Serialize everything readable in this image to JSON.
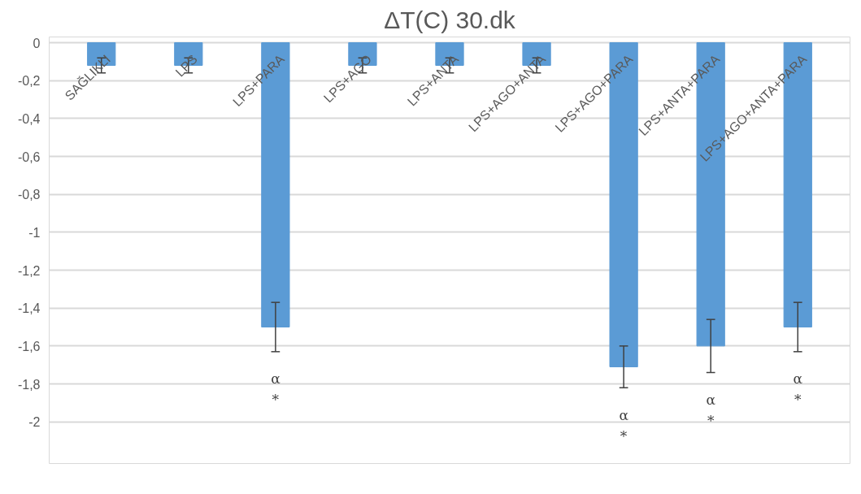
{
  "chart_data": {
    "type": "bar",
    "title": "ΔT(C) 30.dk",
    "categories": [
      "SAĞLIKLI",
      "LPS",
      "LPS+PARA",
      "LPS+AGO",
      "LPS+ANTA",
      "LPS+AGO+ANTA",
      "LPS+AGO+PARA",
      "LPS+ANTA+PARA",
      "LPS+AGO+ANTA+PARA"
    ],
    "values": [
      -0.12,
      -0.12,
      -1.5,
      -0.12,
      -0.12,
      -0.12,
      -1.71,
      -1.6,
      -1.5
    ],
    "errors": [
      0.04,
      0.04,
      0.13,
      0.04,
      0.04,
      0.04,
      0.11,
      0.14,
      0.13
    ],
    "color": "#5b9bd5",
    "ylim": [
      -2.22,
      0.03
    ],
    "yticks": [
      {
        "value": 0,
        "label": "0"
      },
      {
        "value": -0.2,
        "label": "-0,2"
      },
      {
        "value": -0.4,
        "label": "-0,4"
      },
      {
        "value": -0.6,
        "label": "-0,6"
      },
      {
        "value": -0.8,
        "label": "-0,8"
      },
      {
        "value": -1,
        "label": "-1"
      },
      {
        "value": -1.2,
        "label": "-1,2"
      },
      {
        "value": -1.4,
        "label": "-1,4"
      },
      {
        "value": -1.6,
        "label": "-1,6"
      },
      {
        "value": -1.8,
        "label": "-1,8"
      },
      {
        "value": -2,
        "label": "-2"
      }
    ],
    "grid": "y",
    "annotations": [
      "α\n*",
      "α\n*",
      "α\n*",
      "α\n*"
    ]
  }
}
